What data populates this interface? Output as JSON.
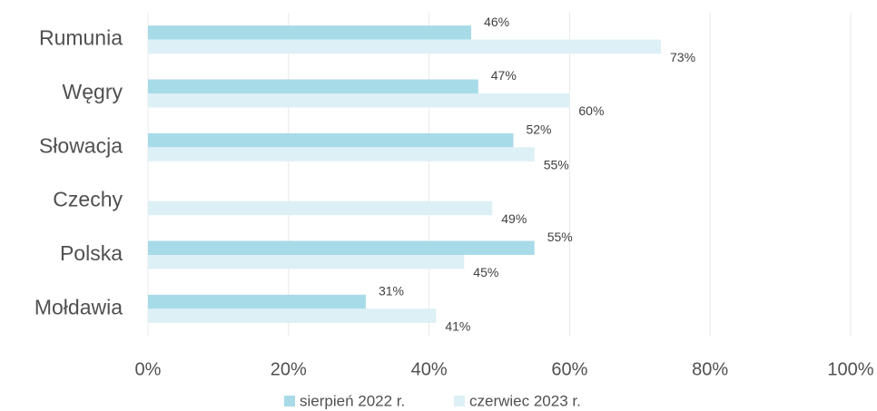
{
  "chart_data": {
    "type": "hbar",
    "categories": [
      "Rumunia",
      "Węgry",
      "Słowacja",
      "Czechy",
      "Polska",
      "Mołdawia"
    ],
    "series": [
      {
        "name": "sierpień 2022 r.",
        "color": "#a8dbe8",
        "values": [
          46,
          47,
          52,
          null,
          55,
          31
        ],
        "value_labels": [
          "46%",
          "47%",
          "52%",
          null,
          "55%",
          "31%"
        ]
      },
      {
        "name": "czerwiec 2023 r.",
        "color": "#dcf0f6",
        "values": [
          73,
          60,
          55,
          49,
          45,
          41
        ],
        "value_labels": [
          "73%",
          "60%",
          "55%",
          "49%",
          "45%",
          "41%"
        ]
      }
    ],
    "xlim": [
      0,
      100
    ],
    "xticks": [
      {
        "value": 0,
        "label": "0%"
      },
      {
        "value": 20,
        "label": "20%"
      },
      {
        "value": 40,
        "label": "40%"
      },
      {
        "value": 60,
        "label": "60%"
      },
      {
        "value": 80,
        "label": "80%"
      },
      {
        "value": 100,
        "label": "100%"
      }
    ],
    "grid": true,
    "legend": "bottom"
  }
}
